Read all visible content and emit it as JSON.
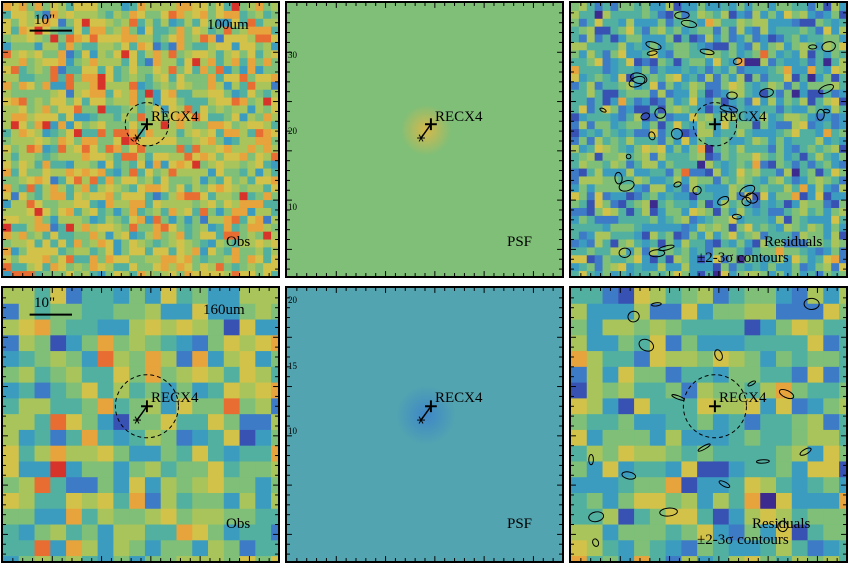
{
  "figure": {
    "panels": [
      {
        "id": "top-obs",
        "kind": "obs",
        "band": "100um",
        "scalebar": "10\"",
        "bottom_label": "Obs",
        "source": "RECX4"
      },
      {
        "id": "top-psf",
        "kind": "psf",
        "band": "",
        "bottom_label": "PSF",
        "source": "RECX4",
        "axis_ticks": [
          "30",
          "20",
          "10"
        ]
      },
      {
        "id": "top-res",
        "kind": "res",
        "band": "",
        "bottom_label": "Residuals",
        "bottom_label_2": "±2-3σ contours",
        "source": "RECX4"
      },
      {
        "id": "bot-obs",
        "kind": "obs",
        "band": "160um",
        "scalebar": "10\"",
        "bottom_label": "Obs",
        "source": "RECX4"
      },
      {
        "id": "bot-psf",
        "kind": "psf",
        "band": "",
        "bottom_label": "PSF",
        "source": "RECX4",
        "axis_ticks": [
          "20",
          "15",
          "10"
        ]
      },
      {
        "id": "bot-res",
        "kind": "res",
        "band": "",
        "bottom_label": "Residuals",
        "bottom_label_2": "±2-3σ contours",
        "source": "RECX4"
      }
    ],
    "colors": {
      "frame": "#000000",
      "noise_palette": [
        "#3d2a8f",
        "#3852b4",
        "#3e7bc6",
        "#3c9cc0",
        "#52b0a0",
        "#7fbf78",
        "#aac45c",
        "#d2c24a",
        "#e7a33c",
        "#e86d33",
        "#d8332b"
      ],
      "psf_bg_top": "#7fbf78",
      "psf_bg_bottom": "#52a4b0",
      "psf_core_top": "#d8b84a",
      "psf_core_bottom": "#3e86c8"
    }
  }
}
